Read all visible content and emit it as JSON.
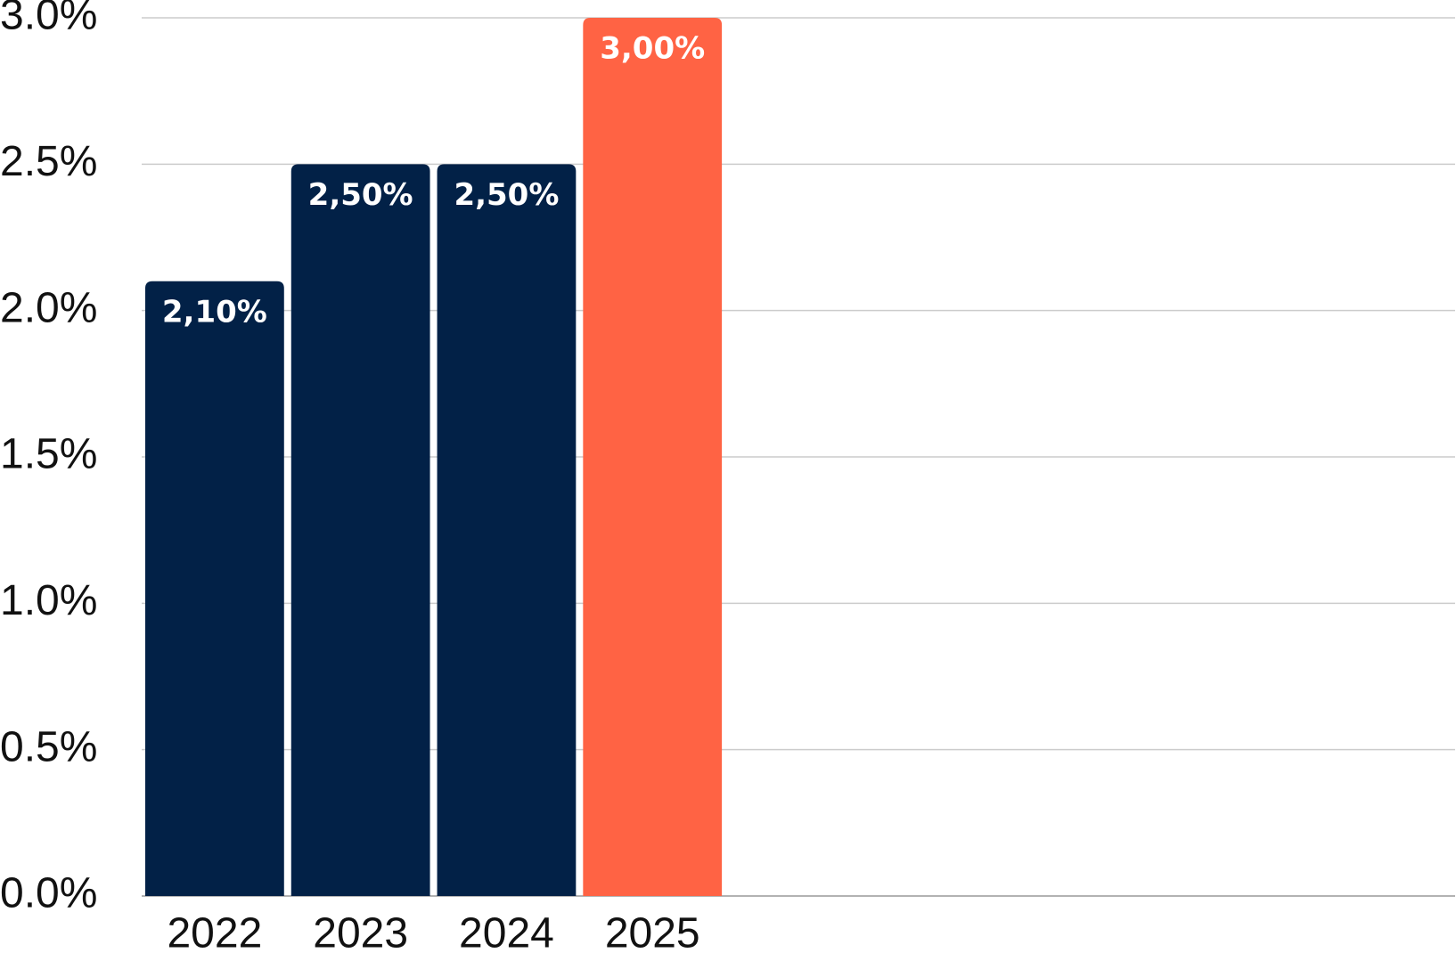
{
  "chart_data": {
    "type": "bar",
    "categories": [
      "2022",
      "2023",
      "2024",
      "2025"
    ],
    "values": [
      2.1,
      2.5,
      2.5,
      3.0
    ],
    "value_labels": [
      "2,10%",
      "2,50%",
      "2,50%",
      "3,00%"
    ],
    "colors": [
      "#022147",
      "#022147",
      "#022147",
      "#ff6344"
    ],
    "ylim": [
      0,
      3
    ],
    "yticks": [
      {
        "value": 0,
        "label": "0.0%"
      },
      {
        "value": 0.5,
        "label": "0.5%"
      },
      {
        "value": 1,
        "label": "1.0%"
      },
      {
        "value": 1.5,
        "label": "1.5%"
      },
      {
        "value": 2,
        "label": "2.0%"
      },
      {
        "value": 2.5,
        "label": "2.5%"
      },
      {
        "value": 3,
        "label": "3.0%"
      }
    ],
    "grid": true
  }
}
